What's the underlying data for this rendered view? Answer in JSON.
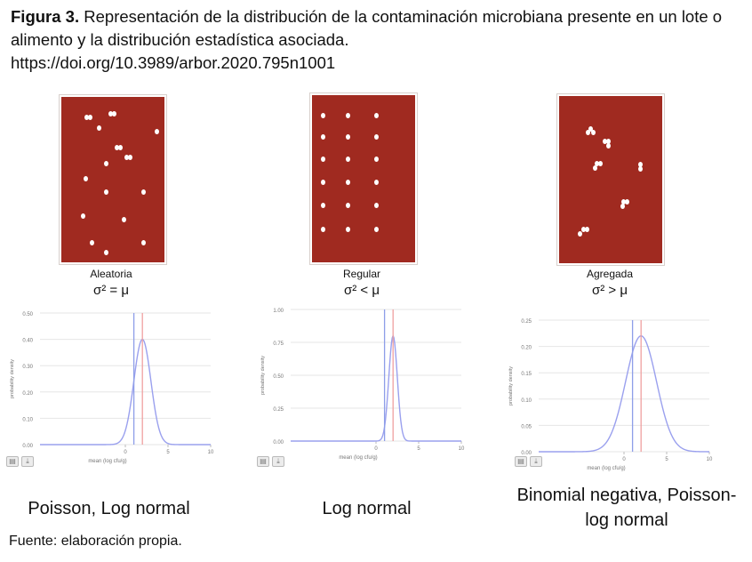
{
  "caption": {
    "figure_label": "Figura 3.",
    "text": "Representación de la distribución de la contaminación microbiana presente en un lote o alimento y la distribución estadística asociada.",
    "doi": "https://doi.org/10.3989/arbor.2020.795n1001"
  },
  "panels": [
    {
      "title": "Aleatoria",
      "relation": "σ² = μ",
      "bottom_label": "Poisson, Log normal",
      "chart_data": {
        "type": "line",
        "xlabel": "mean (log cfu/g)",
        "ylabel": "probability density",
        "xlim": [
          -10,
          10
        ],
        "ylim": [
          0,
          0.5
        ],
        "xticks": [
          "0",
          "5",
          "10"
        ],
        "yticks": [
          "0.00",
          "0.10",
          "0.20",
          "0.30",
          "0.40",
          "0.50"
        ],
        "curve": {
          "mean": 2,
          "peak": 0.4
        },
        "blue_line_x": 1,
        "red_line_x": 2,
        "colors": {
          "curve": "#9aa0ee",
          "blue": "#8e9ee8",
          "red": "#f0a0a0"
        }
      }
    },
    {
      "title": "Regular",
      "relation": "σ² < μ",
      "bottom_label": "Log normal",
      "chart_data": {
        "type": "line",
        "xlabel": "mean (log cfu/g)",
        "ylabel": "probability density",
        "xlim": [
          -10,
          10
        ],
        "ylim": [
          0,
          1.0
        ],
        "xticks": [
          "0",
          "5",
          "10"
        ],
        "yticks": [
          "0.00",
          "0.25",
          "0.50",
          "0.75",
          "1.00"
        ],
        "curve": {
          "mean": 2,
          "peak": 0.8
        },
        "blue_line_x": 1,
        "red_line_x": 2,
        "colors": {
          "curve": "#9aa0ee",
          "blue": "#8e9ee8",
          "red": "#f0a0a0"
        }
      }
    },
    {
      "title": "Agregada",
      "relation": "σ² > μ",
      "bottom_label_lines": [
        "Binomial negativa, Poisson-",
        "log normal"
      ],
      "chart_data": {
        "type": "line",
        "xlabel": "mean (log cfu/g)",
        "ylabel": "probability density",
        "xlim": [
          -10,
          10
        ],
        "ylim": [
          0,
          0.25
        ],
        "xticks": [
          "0",
          "5",
          "10"
        ],
        "yticks": [
          "0.00",
          "0.05",
          "0.10",
          "0.15",
          "0.20",
          "0.25"
        ],
        "curve": {
          "mean": 2,
          "peak": 0.22
        },
        "blue_line_x": 1,
        "red_line_x": 2,
        "colors": {
          "curve": "#9aa0ee",
          "blue": "#8e9ee8",
          "red": "#f0a0a0"
        }
      }
    }
  ],
  "source": "Fuente: elaboración propia.",
  "icons": [
    "print-icon",
    "download-icon"
  ],
  "colors": {
    "plate": "#a02a20",
    "grid": "#e6e6e6",
    "axis_text": "#777777"
  }
}
